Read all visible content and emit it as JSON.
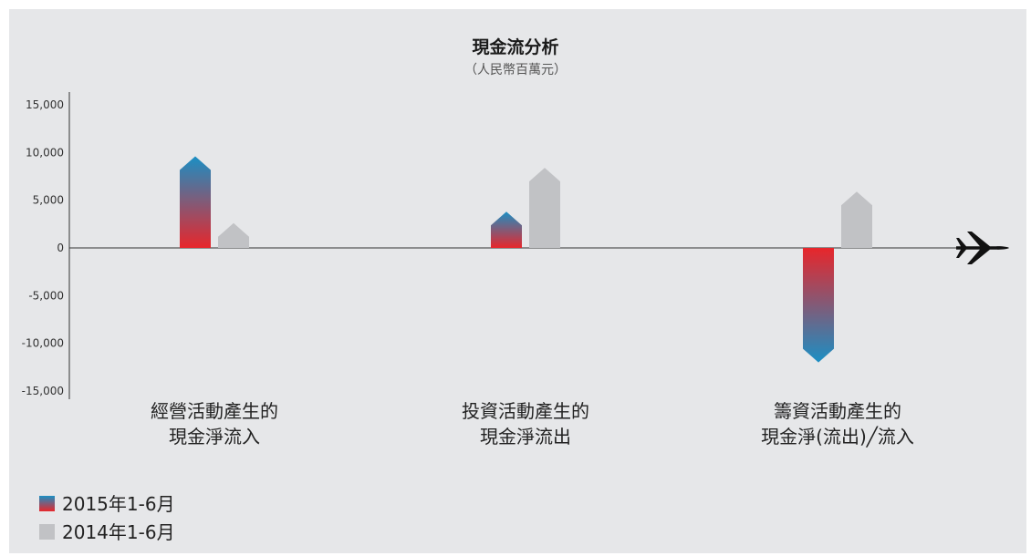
{
  "colors": {
    "background": "#e6e7e9",
    "series_2015_top": "#1b8fc4",
    "series_2015_bottom": "#e8262b",
    "series_2014": "#c1c2c5",
    "axis": "#333333"
  },
  "icons": {
    "axis_end": "airplane-icon"
  },
  "chart_data": {
    "type": "bar",
    "title": "現金流分析",
    "subtitle": "（人民幣百萬元）",
    "xlabel": "",
    "ylabel": "",
    "ylim": [
      -15000,
      15000
    ],
    "yticks": [
      15000,
      10000,
      5000,
      0,
      -5000,
      -10000,
      -15000
    ],
    "ytick_labels": [
      "15,000",
      "10,000",
      "5,000",
      "0",
      "-5,000",
      "-10,000",
      "-15,000"
    ],
    "categories": [
      [
        "經營活動產生的",
        "現金淨流入"
      ],
      [
        "投資活動產生的",
        "現金淨流出"
      ],
      [
        "籌資活動產生的",
        "現金淨(流出)╱流入"
      ]
    ],
    "series": [
      {
        "name": "2015年1-6月",
        "values": [
          9600,
          3800,
          -12000
        ]
      },
      {
        "name": "2014年1-6月",
        "values": [
          2600,
          8400,
          5900
        ]
      }
    ],
    "grid": false,
    "legend_position": "bottom-left"
  }
}
